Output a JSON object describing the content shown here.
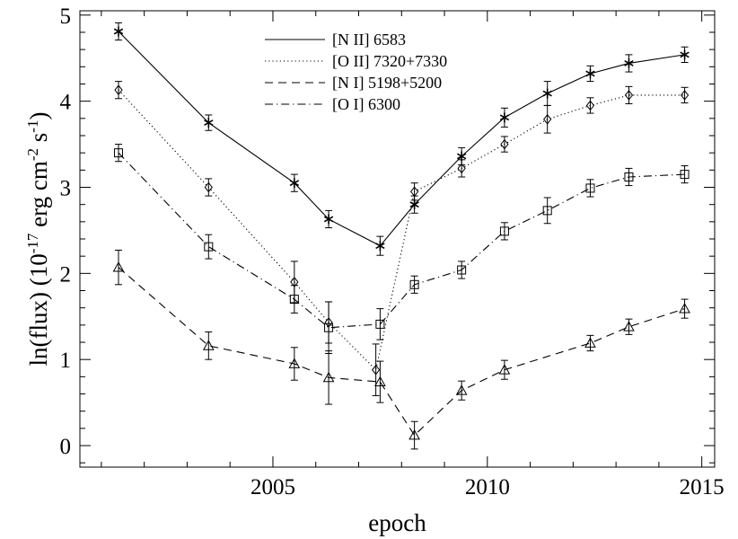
{
  "chart_data": {
    "type": "line",
    "title": "",
    "xlabel": "epoch",
    "ylabel_main": "ln(flux) (10",
    "ylabel_exp1": "-17",
    "ylabel_mid": " erg cm",
    "ylabel_exp2": "-2",
    "ylabel_mid2": " s",
    "ylabel_exp3": "-1",
    "ylabel_end": ")",
    "xlim": [
      2000.5,
      2015.3
    ],
    "ylim": [
      -0.25,
      5.05
    ],
    "xticks": [
      2005,
      2010,
      2015
    ],
    "yticks": [
      0,
      1,
      2,
      3,
      4,
      5
    ],
    "legend_position": "top-center",
    "grid": false,
    "series": [
      {
        "name": "[N II] 6583",
        "linestyle": "solid",
        "marker": "asterisk",
        "x": [
          2001.4,
          2003.5,
          2005.5,
          2006.3,
          2007.5,
          2008.3,
          2009.4,
          2010.4,
          2011.4,
          2012.4,
          2013.3,
          2014.6
        ],
        "y": [
          4.81,
          3.75,
          3.05,
          2.63,
          2.32,
          2.8,
          3.36,
          3.81,
          4.09,
          4.32,
          4.44,
          4.54
        ],
        "err": [
          0.1,
          0.09,
          0.1,
          0.1,
          0.11,
          0.1,
          0.1,
          0.11,
          0.14,
          0.09,
          0.1,
          0.09
        ]
      },
      {
        "name": "[O II] 7320+7330",
        "linestyle": "dotted",
        "marker": "diamond",
        "x": [
          2001.4,
          2003.5,
          2005.5,
          2006.3,
          2007.4,
          2008.3,
          2009.4,
          2010.4,
          2011.4,
          2012.4,
          2013.3,
          2014.6
        ],
        "y": [
          4.13,
          3.0,
          1.9,
          1.43,
          0.88,
          2.95,
          3.22,
          3.5,
          3.79,
          3.95,
          4.07,
          4.07
        ],
        "err": [
          0.1,
          0.1,
          0.24,
          0.24,
          0.3,
          0.1,
          0.1,
          0.09,
          0.16,
          0.09,
          0.1,
          0.09
        ]
      },
      {
        "name": "[N I] 5198+5200",
        "linestyle": "dashed",
        "marker": "triangle",
        "x": [
          2001.4,
          2003.5,
          2005.5,
          2006.3,
          2007.5,
          2008.3,
          2009.4,
          2010.4,
          2012.4,
          2013.3,
          2014.6
        ],
        "y": [
          2.07,
          1.16,
          0.95,
          0.79,
          0.74,
          0.12,
          0.64,
          0.88,
          1.19,
          1.38,
          1.59
        ],
        "err": [
          0.2,
          0.16,
          0.19,
          0.31,
          0.24,
          0.16,
          0.11,
          0.11,
          0.09,
          0.09,
          0.11
        ]
      },
      {
        "name": "[O I] 6300",
        "linestyle": "dashdot",
        "marker": "square",
        "x": [
          2001.4,
          2003.5,
          2005.5,
          2006.3,
          2007.5,
          2008.3,
          2009.4,
          2010.4,
          2011.4,
          2012.4,
          2013.3,
          2014.6
        ],
        "y": [
          3.4,
          2.31,
          1.7,
          1.37,
          1.41,
          1.87,
          2.04,
          2.49,
          2.73,
          2.99,
          3.12,
          3.15
        ],
        "err": [
          0.1,
          0.14,
          0.16,
          0.3,
          0.18,
          0.1,
          0.1,
          0.1,
          0.15,
          0.1,
          0.1,
          0.1
        ]
      }
    ]
  }
}
